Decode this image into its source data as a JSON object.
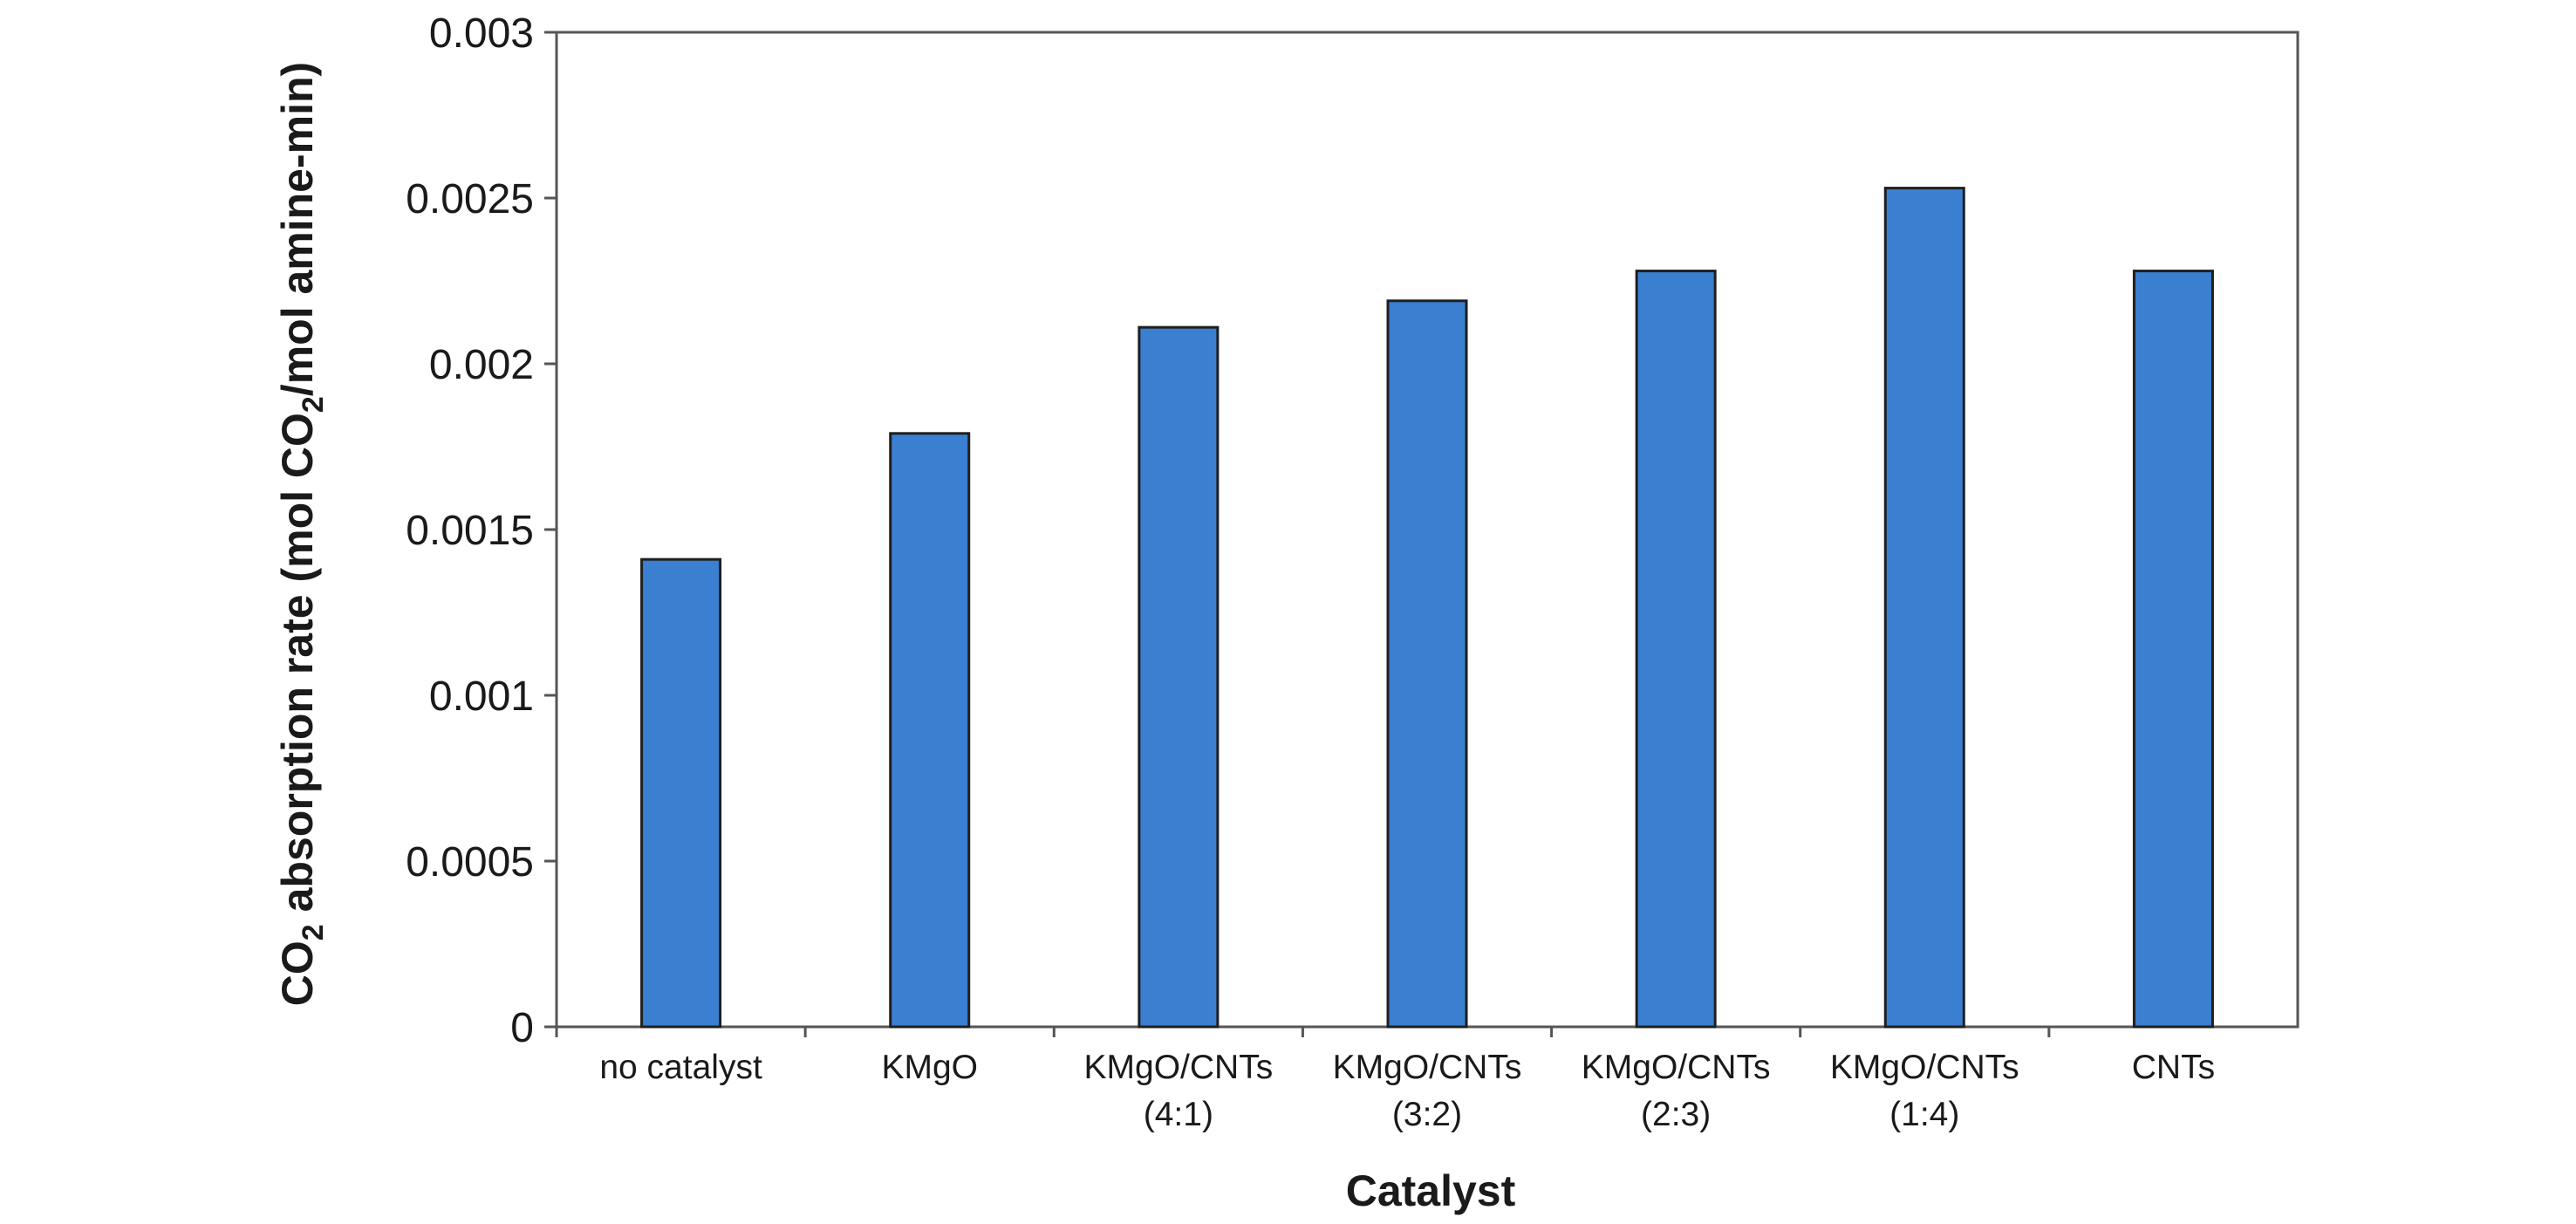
{
  "chart_data": {
    "type": "bar",
    "xlabel": "Catalyst",
    "ylabel": {
      "prefix": "CO",
      "prefix_sub": "2",
      "middle": " absorption rate (mol CO",
      "middle_sub": "2",
      "suffix": "/mol amine-min)"
    },
    "categories": [
      [
        "no catalyst"
      ],
      [
        "KMgO"
      ],
      [
        "KMgO/CNTs",
        "(4:1)"
      ],
      [
        "KMgO/CNTs",
        "(3:2)"
      ],
      [
        "KMgO/CNTs",
        "(2:3)"
      ],
      [
        "KMgO/CNTs",
        "(1:4)"
      ],
      [
        "CNTs"
      ]
    ],
    "values": [
      0.00141,
      0.00179,
      0.00211,
      0.00219,
      0.00228,
      0.00253,
      0.00228
    ],
    "ylim": [
      0,
      0.003
    ],
    "yticks": [
      "0",
      "0.0005",
      "0.001",
      "0.0015",
      "0.002",
      "0.0025",
      "0.003"
    ],
    "grid": false,
    "legend": "none",
    "bar_color": "#3a7fd0",
    "bar_edge_color": "#1f1f1f"
  }
}
